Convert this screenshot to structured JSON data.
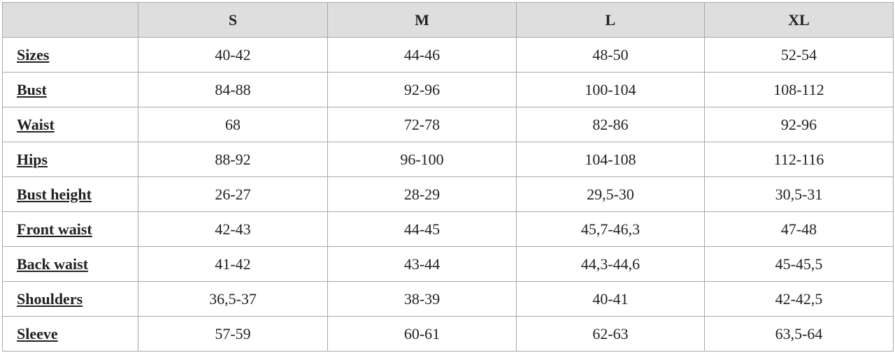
{
  "table": {
    "columns": [
      "S",
      "M",
      "L",
      "XL"
    ],
    "rows": [
      {
        "label": "Sizes",
        "cells": [
          "40-42",
          "44-46",
          "48-50",
          "52-54"
        ]
      },
      {
        "label": "Bust",
        "cells": [
          "84-88",
          "92-96",
          "100-104",
          "108-112"
        ]
      },
      {
        "label": "Waist",
        "cells": [
          "68",
          "72-78",
          "82-86",
          "92-96"
        ]
      },
      {
        "label": "Hips",
        "cells": [
          "88-92",
          "96-100",
          "104-108",
          "112-116"
        ]
      },
      {
        "label": "Bust height",
        "cells": [
          "26-27",
          "28-29",
          "29,5-30",
          "30,5-31"
        ]
      },
      {
        "label": "Front waist",
        "cells": [
          "42-43",
          "44-45",
          "45,7-46,3",
          "47-48"
        ]
      },
      {
        "label": "Back waist",
        "cells": [
          "41-42",
          "43-44",
          "44,3-44,6",
          "45-45,5"
        ]
      },
      {
        "label": "Shoulders",
        "cells": [
          "36,5-37",
          "38-39",
          "40-41",
          "42-42,5"
        ]
      },
      {
        "label": "Sleeve",
        "cells": [
          "57-59",
          "60-61",
          "62-63",
          "63,5-64"
        ]
      }
    ]
  }
}
